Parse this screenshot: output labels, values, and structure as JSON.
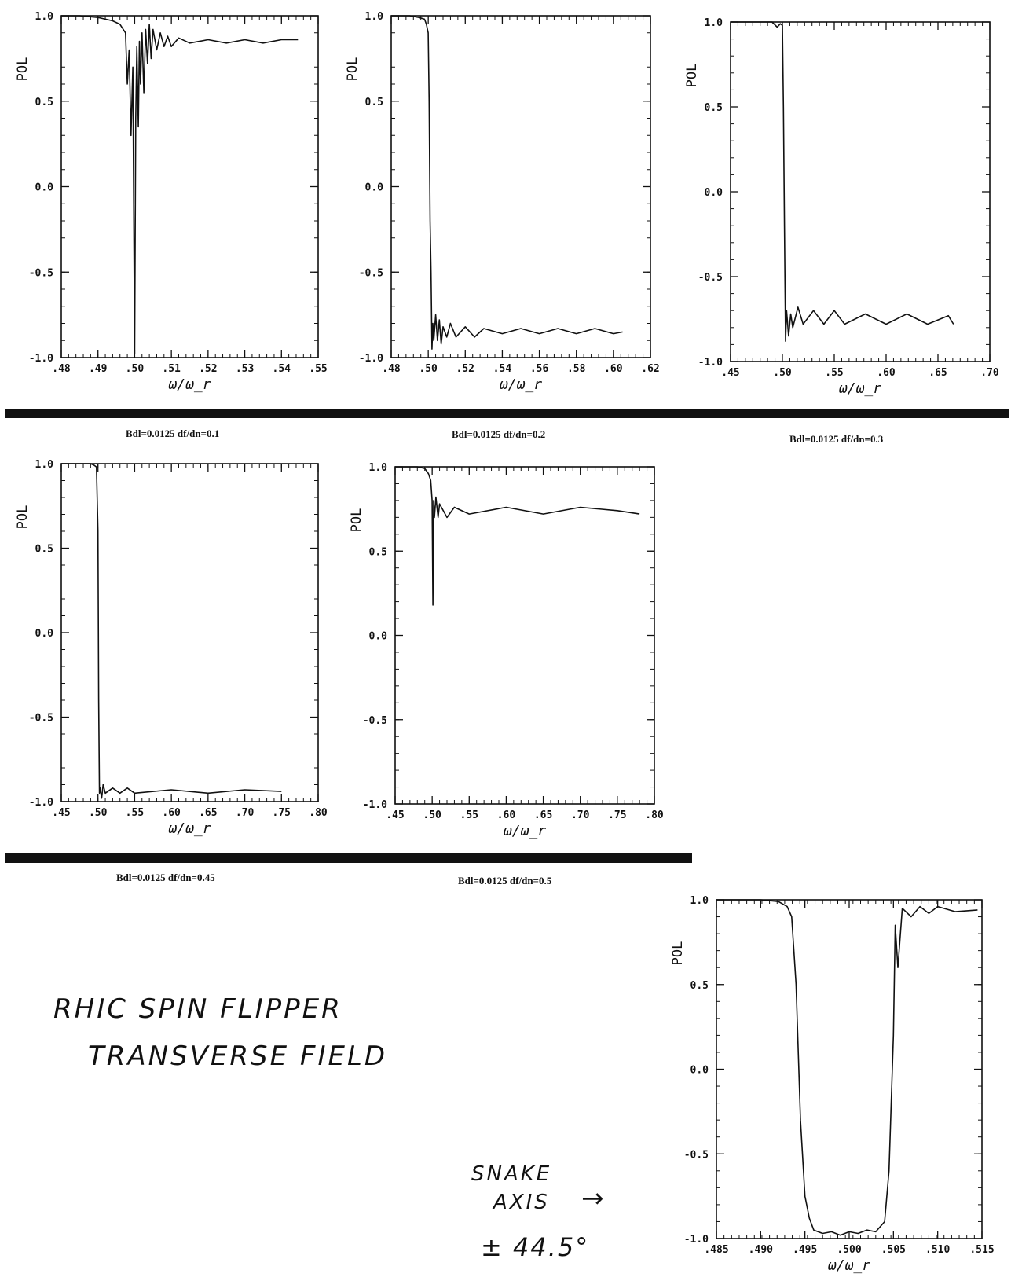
{
  "document": {
    "handwritten_title": [
      "RHIC SPIN FLIPPER",
      "TRANSVERSE FIELD"
    ],
    "handwritten_note": [
      "SNAKE",
      "AXIS",
      "± 44.5°"
    ],
    "arrow_glyph": "→",
    "captions": [
      "Bdl=0.0125 df/dn=0.1",
      "Bdl=0.0125 df/dn=0.2",
      "Bdl=0.0125 df/dn=0.3",
      "Bdl=0.0125 df/dn=0.45",
      "Bdl=0.0125 df/dn=0.5"
    ]
  },
  "chart_data": [
    {
      "type": "line",
      "title": "",
      "xlabel": "ω/ω_r",
      "ylabel": "POL",
      "xlim": [
        0.48,
        0.55
      ],
      "ylim": [
        -1.0,
        1.0
      ],
      "xticks": [
        0.48,
        0.49,
        0.5,
        0.51,
        0.52,
        0.53,
        0.54,
        0.55
      ],
      "xtick_labels": [
        ".48",
        ".49",
        ".50",
        ".51",
        ".52",
        ".53",
        ".54",
        ".55"
      ],
      "yticks": [
        1.0,
        0.5,
        0.0,
        -0.5,
        -1.0
      ],
      "ytick_labels": [
        "1.0",
        "0.5",
        "0.0",
        "-0.5",
        "-1.0"
      ],
      "caption_index": 0,
      "series": [
        {
          "x": [
            0.48,
            0.485,
            0.49,
            0.494,
            0.496,
            0.4975,
            0.498,
            0.4985,
            0.499,
            0.4995,
            0.5,
            0.5003,
            0.5006,
            0.501,
            0.5013,
            0.5016,
            0.502,
            0.5025,
            0.503,
            0.5035,
            0.504,
            0.5045,
            0.505,
            0.506,
            0.507,
            0.508,
            0.509,
            0.51,
            0.512,
            0.515,
            0.52,
            0.525,
            0.53,
            0.535,
            0.54,
            0.5445
          ],
          "y": [
            1.0,
            1.0,
            0.99,
            0.97,
            0.95,
            0.9,
            0.6,
            0.8,
            0.3,
            0.7,
            -0.98,
            0.4,
            0.82,
            0.35,
            0.85,
            0.6,
            0.9,
            0.55,
            0.92,
            0.72,
            0.95,
            0.75,
            0.92,
            0.8,
            0.9,
            0.82,
            0.88,
            0.82,
            0.87,
            0.84,
            0.86,
            0.84,
            0.86,
            0.84,
            0.86,
            0.86
          ]
        }
      ]
    },
    {
      "type": "line",
      "title": "",
      "xlabel": "ω/ω_r",
      "ylabel": "POL",
      "xlim": [
        0.48,
        0.62
      ],
      "ylim": [
        -1.0,
        1.0
      ],
      "xticks": [
        0.48,
        0.5,
        0.52,
        0.54,
        0.56,
        0.58,
        0.6,
        0.62
      ],
      "xtick_labels": [
        ".48",
        ".50",
        ".52",
        ".54",
        ".56",
        ".58",
        ".60",
        ".62"
      ],
      "yticks": [
        1.0,
        0.5,
        0.0,
        -0.5,
        -1.0
      ],
      "ytick_labels": [
        "1.0",
        "0.5",
        "0.0",
        "-0.5",
        "-1.0"
      ],
      "caption_index": 1,
      "series": [
        {
          "x": [
            0.48,
            0.49,
            0.495,
            0.498,
            0.499,
            0.5,
            0.5005,
            0.501,
            0.5015,
            0.502,
            0.5025,
            0.503,
            0.504,
            0.505,
            0.506,
            0.507,
            0.508,
            0.51,
            0.512,
            0.515,
            0.52,
            0.525,
            0.53,
            0.54,
            0.55,
            0.56,
            0.57,
            0.58,
            0.59,
            0.6,
            0.605
          ],
          "y": [
            1.0,
            1.0,
            0.99,
            0.98,
            0.95,
            0.9,
            0.5,
            -0.2,
            -0.5,
            -0.95,
            -0.8,
            -0.9,
            -0.75,
            -0.9,
            -0.78,
            -0.92,
            -0.82,
            -0.88,
            -0.8,
            -0.88,
            -0.82,
            -0.88,
            -0.83,
            -0.86,
            -0.83,
            -0.86,
            -0.83,
            -0.86,
            -0.83,
            -0.86,
            -0.85
          ]
        }
      ]
    },
    {
      "type": "line",
      "title": "",
      "xlabel": "ω/ω_r",
      "ylabel": "POL",
      "xlim": [
        0.45,
        0.7
      ],
      "ylim": [
        -1.0,
        1.0
      ],
      "xticks": [
        0.45,
        0.5,
        0.55,
        0.6,
        0.65,
        0.7
      ],
      "xtick_labels": [
        ".45",
        ".50",
        ".55",
        ".60",
        ".65",
        ".70"
      ],
      "yticks": [
        1.0,
        0.5,
        0.0,
        -0.5,
        -1.0
      ],
      "ytick_labels": [
        "1.0",
        "0.5",
        "0.0",
        "-0.5",
        "-1.0"
      ],
      "caption_index": 2,
      "series": [
        {
          "x": [
            0.45,
            0.49,
            0.495,
            0.498,
            0.5,
            0.501,
            0.502,
            0.503,
            0.504,
            0.506,
            0.508,
            0.51,
            0.515,
            0.52,
            0.53,
            0.54,
            0.55,
            0.56,
            0.58,
            0.6,
            0.62,
            0.64,
            0.66,
            0.665
          ],
          "y": [
            1.0,
            1.0,
            0.97,
            0.99,
            0.98,
            0.5,
            -0.2,
            -0.88,
            -0.7,
            -0.85,
            -0.72,
            -0.8,
            -0.68,
            -0.78,
            -0.7,
            -0.78,
            -0.7,
            -0.78,
            -0.72,
            -0.78,
            -0.72,
            -0.78,
            -0.73,
            -0.78
          ]
        }
      ]
    },
    {
      "type": "line",
      "title": "",
      "xlabel": "ω/ω_r",
      "ylabel": "POL",
      "xlim": [
        0.45,
        0.8
      ],
      "ylim": [
        -1.0,
        1.0
      ],
      "xticks": [
        0.45,
        0.5,
        0.55,
        0.6,
        0.65,
        0.7,
        0.75,
        0.8
      ],
      "xtick_labels": [
        ".45",
        ".50",
        ".55",
        ".60",
        ".65",
        ".70",
        ".75",
        ".80"
      ],
      "yticks": [
        1.0,
        0.5,
        0.0,
        -0.5,
        -1.0
      ],
      "ytick_labels": [
        "1.0",
        "0.5",
        "0.0",
        "-0.5",
        "-1.0"
      ],
      "caption_index": 3,
      "series": [
        {
          "x": [
            0.45,
            0.49,
            0.495,
            0.498,
            0.5,
            0.501,
            0.502,
            0.503,
            0.505,
            0.507,
            0.51,
            0.52,
            0.53,
            0.54,
            0.55,
            0.6,
            0.65,
            0.7,
            0.75
          ],
          "y": [
            1.0,
            1.0,
            0.99,
            0.98,
            0.6,
            -0.4,
            -0.95,
            -0.92,
            -0.98,
            -0.9,
            -0.95,
            -0.92,
            -0.95,
            -0.92,
            -0.95,
            -0.93,
            -0.95,
            -0.93,
            -0.94
          ]
        }
      ]
    },
    {
      "type": "line",
      "title": "",
      "xlabel": "ω/ω_r",
      "ylabel": "POL",
      "xlim": [
        0.45,
        0.8
      ],
      "ylim": [
        -1.0,
        1.0
      ],
      "xticks": [
        0.45,
        0.5,
        0.55,
        0.6,
        0.65,
        0.7,
        0.75,
        0.8
      ],
      "xtick_labels": [
        ".45",
        ".50",
        ".55",
        ".60",
        ".65",
        ".70",
        ".75",
        ".80"
      ],
      "yticks": [
        1.0,
        0.5,
        0.0,
        -0.5,
        -1.0
      ],
      "ytick_labels": [
        "1.0",
        "0.5",
        "0.0",
        "-0.5",
        "-1.0"
      ],
      "caption_index": 4,
      "series": [
        {
          "x": [
            0.45,
            0.48,
            0.49,
            0.495,
            0.498,
            0.5,
            0.501,
            0.502,
            0.503,
            0.505,
            0.508,
            0.51,
            0.52,
            0.53,
            0.55,
            0.6,
            0.65,
            0.7,
            0.75,
            0.78
          ],
          "y": [
            1.0,
            1.0,
            0.99,
            0.96,
            0.92,
            0.8,
            0.18,
            0.8,
            0.7,
            0.82,
            0.7,
            0.78,
            0.7,
            0.76,
            0.72,
            0.76,
            0.72,
            0.76,
            0.74,
            0.72
          ]
        }
      ]
    },
    {
      "type": "line",
      "title": "",
      "xlabel": "ω/ω_r",
      "ylabel": "POL",
      "xlim": [
        0.485,
        0.515
      ],
      "ylim": [
        -1.0,
        1.0
      ],
      "xticks": [
        0.485,
        0.49,
        0.495,
        0.5,
        0.505,
        0.51,
        0.515
      ],
      "xtick_labels": [
        ".485",
        ".490",
        ".495",
        ".500",
        ".505",
        ".510",
        ".515"
      ],
      "yticks": [
        1.0,
        0.5,
        0.0,
        -0.5,
        -1.0
      ],
      "ytick_labels": [
        "1.0",
        "0.5",
        "0.0",
        "-0.5",
        "-1.0"
      ],
      "caption_index": null,
      "series": [
        {
          "x": [
            0.485,
            0.49,
            0.492,
            0.493,
            0.4935,
            0.494,
            0.4945,
            0.495,
            0.4955,
            0.496,
            0.497,
            0.498,
            0.499,
            0.5,
            0.501,
            0.502,
            0.503,
            0.504,
            0.5045,
            0.505,
            0.5052,
            0.5055,
            0.506,
            0.507,
            0.508,
            0.509,
            0.51,
            0.512,
            0.5145
          ],
          "y": [
            1.0,
            1.0,
            0.99,
            0.96,
            0.9,
            0.5,
            -0.3,
            -0.75,
            -0.88,
            -0.95,
            -0.97,
            -0.96,
            -0.98,
            -0.96,
            -0.97,
            -0.95,
            -0.96,
            -0.9,
            -0.6,
            0.2,
            0.85,
            0.6,
            0.95,
            0.9,
            0.96,
            0.92,
            0.96,
            0.93,
            0.94
          ]
        }
      ]
    }
  ]
}
